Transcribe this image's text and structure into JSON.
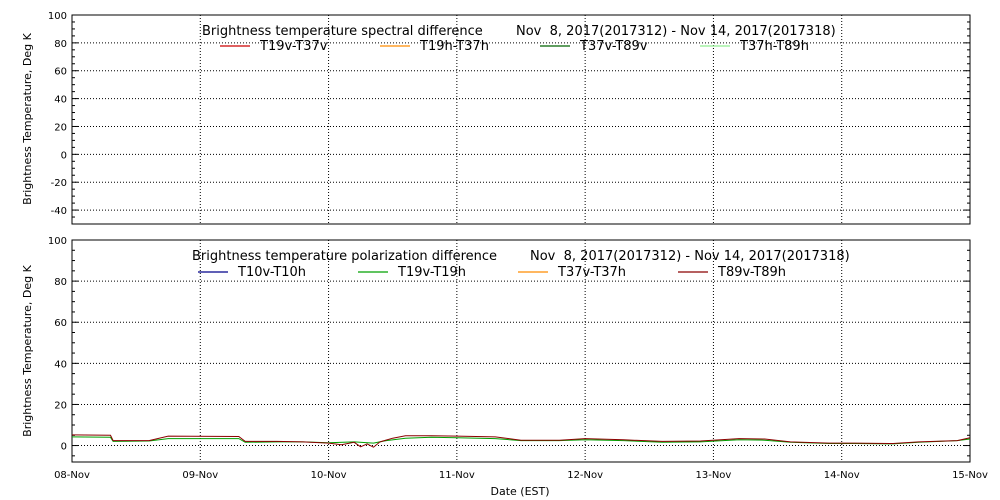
{
  "chart_data": [
    {
      "type": "line",
      "title": "Brightness temperature spectral difference",
      "date_range": "Nov  8, 2017(2017312) - Nov 14, 2017(2017318)",
      "ylabel": "Brightness Temperature, Deg K",
      "xlabel": "",
      "ylim": [
        -50,
        100
      ],
      "yticks": [
        "-40",
        "-20",
        "0",
        "20",
        "40",
        "60",
        "80",
        "100"
      ],
      "ytick_values": [
        -40,
        -20,
        0,
        20,
        40,
        60,
        80,
        100
      ],
      "xlim": [
        0,
        7
      ],
      "grid": true,
      "legend_position": "top",
      "series": [
        {
          "name": "T19v-T37v",
          "color": "#cc0000",
          "x": [],
          "values": []
        },
        {
          "name": "T19h-T37h",
          "color": "#ff8c00",
          "x": [],
          "values": []
        },
        {
          "name": "T37v-T89v",
          "color": "#006400",
          "x": [],
          "values": []
        },
        {
          "name": "T37h-T89h",
          "color": "#90ee90",
          "x": [],
          "values": []
        }
      ]
    },
    {
      "type": "line",
      "title": "Brightness temperature polarization difference",
      "date_range": "Nov  8, 2017(2017312) - Nov 14, 2017(2017318)",
      "ylabel": "Brightness Temperature, Deg K",
      "xlabel": "Date (EST)",
      "ylim": [
        -8,
        100
      ],
      "yticks": [
        "0",
        "20",
        "40",
        "60",
        "80",
        "100"
      ],
      "ytick_values": [
        0,
        20,
        40,
        60,
        80,
        100
      ],
      "xlim": [
        0,
        7
      ],
      "xticks": [
        "08-Nov",
        "09-Nov",
        "10-Nov",
        "11-Nov",
        "12-Nov",
        "13-Nov",
        "14-Nov",
        "15-Nov"
      ],
      "xtick_values": [
        0,
        1,
        2,
        3,
        4,
        5,
        6,
        7
      ],
      "grid": true,
      "legend_position": "top",
      "series": [
        {
          "name": "T10v-T10h",
          "color": "#00008b",
          "x": [],
          "values": []
        },
        {
          "name": "T19v-T19h",
          "color": "#00a000",
          "x": [
            0,
            0.3,
            0.32,
            0.6,
            0.75,
            1.3,
            1.35,
            1.6,
            1.8,
            2.0,
            2.2,
            2.35,
            2.45,
            2.6,
            2.8,
            3.0,
            3.3,
            3.5,
            3.8,
            4.0,
            4.3,
            4.6,
            4.9,
            5.2,
            5.4,
            5.6,
            5.9,
            6.1,
            6.4,
            6.6,
            6.9,
            7.0
          ],
          "values": [
            4.2,
            4.0,
            2.0,
            2.2,
            3.4,
            3.4,
            1.6,
            1.8,
            1.8,
            1.4,
            1.8,
            1.2,
            2.4,
            3.6,
            4.0,
            3.8,
            3.4,
            2.4,
            2.4,
            2.8,
            2.4,
            1.6,
            1.8,
            2.8,
            2.6,
            1.6,
            1.0,
            1.0,
            0.8,
            1.6,
            2.4,
            3.2
          ]
        },
        {
          "name": "T37v-T37h",
          "color": "#ff8c00",
          "x": [],
          "values": []
        },
        {
          "name": "T89v-T89h",
          "color": "#8b0000",
          "x": [
            0,
            0.3,
            0.32,
            0.6,
            0.75,
            1.3,
            1.35,
            1.6,
            1.8,
            2.0,
            2.1,
            2.2,
            2.25,
            2.3,
            2.35,
            2.4,
            2.5,
            2.6,
            2.8,
            3.0,
            3.3,
            3.5,
            3.8,
            4.0,
            4.3,
            4.6,
            4.9,
            5.2,
            5.4,
            5.6,
            5.9,
            6.1,
            6.4,
            6.6,
            6.9,
            7.0
          ],
          "values": [
            5.2,
            5.0,
            2.4,
            2.4,
            4.6,
            4.4,
            2.0,
            2.0,
            1.8,
            1.2,
            0.4,
            1.6,
            -0.6,
            0.8,
            -0.8,
            1.8,
            3.6,
            4.8,
            4.8,
            4.6,
            4.2,
            2.6,
            2.6,
            3.4,
            2.8,
            2.0,
            2.2,
            3.4,
            3.2,
            1.8,
            1.2,
            1.2,
            1.0,
            1.8,
            2.4,
            3.8
          ]
        }
      ]
    }
  ]
}
